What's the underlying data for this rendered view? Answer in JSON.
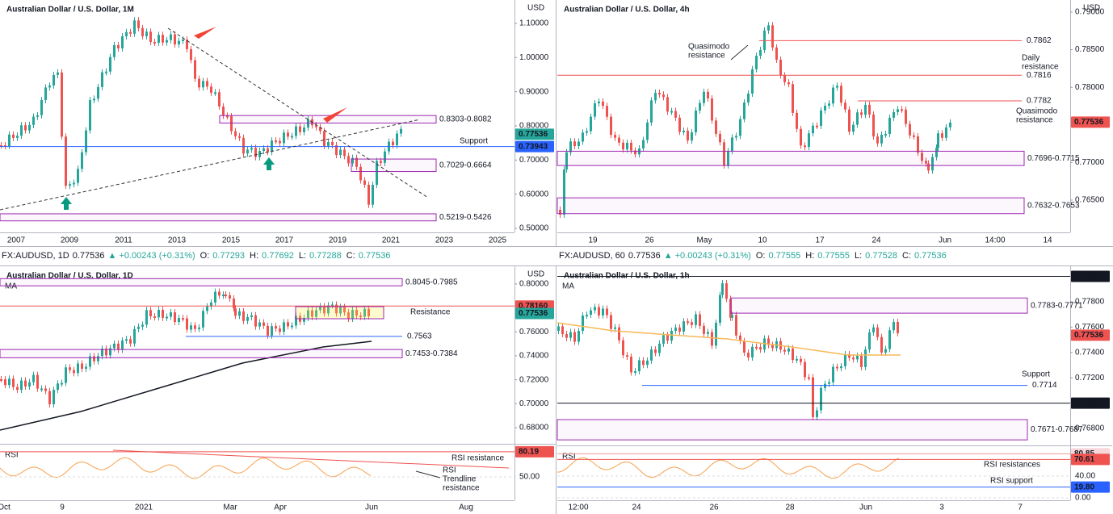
{
  "panels": [
    {
      "title": "Australian Dollar / U.S. Dollar, 1M",
      "currency": "USD",
      "ylim": [
        0.448,
        1.1685
      ],
      "yticks": [
        {
          "value": 1.1,
          "label": "1.10000"
        },
        {
          "value": 1.0,
          "label": "1.00000"
        },
        {
          "value": 0.9,
          "label": "0.90000"
        },
        {
          "value": 0.8,
          "label": "0.80000"
        },
        {
          "value": 0.7,
          "label": "0.70000"
        },
        {
          "value": 0.6,
          "label": "0.60000"
        },
        {
          "value": 0.5,
          "label": "0.50000"
        }
      ],
      "price_tags": [
        {
          "value": 0.77536,
          "label": "0.77536",
          "color": "#26a69a"
        },
        {
          "value": 0.73943,
          "label": "0.73943",
          "color": "#2962ff"
        }
      ],
      "levels": [
        {
          "label": "0.8303-0.8082",
          "low": 0.8082,
          "high": 0.8303,
          "color": "#9c27b0"
        },
        {
          "label": "0.7029-0.6664",
          "low": 0.6664,
          "high": 0.7029,
          "color": "#9c27b0"
        },
        {
          "label": "0.5219-0.5426",
          "low": 0.5219,
          "high": 0.5426,
          "color": "#9c27b0"
        }
      ],
      "annotations": [
        {
          "lines": [
            "Support"
          ]
        }
      ],
      "xticks": [
        "2007",
        "2009",
        "2011",
        "2013",
        "2015",
        "2017",
        "2019",
        "2021",
        "2023",
        "2025"
      ]
    },
    {
      "title": "Australian Dollar / U.S. Dollar, 4h",
      "currency": "USD",
      "ylim": [
        0.75888,
        0.79161
      ],
      "yticks": [
        {
          "value": 0.79,
          "label": "0.79000"
        },
        {
          "value": 0.785,
          "label": "0.78500"
        },
        {
          "value": 0.78,
          "label": "0.78000"
        },
        {
          "value": 0.77,
          "label": "0.77000"
        },
        {
          "value": 0.765,
          "label": "0.76500"
        }
      ],
      "price_tags": [
        {
          "value": 0.77536,
          "label": "0.77536",
          "color": "#ef5350"
        }
      ],
      "levels": [
        {
          "value": 0.7862,
          "color": "#ef5350"
        },
        {
          "value": 0.7816,
          "color": "#ef5350"
        },
        {
          "value": 0.7782,
          "color": "#ef5350"
        },
        {
          "label": "0.7696-0.7715",
          "low": 0.7696,
          "high": 0.7715,
          "color": "#9c27b0"
        },
        {
          "label": "0.7632-0.7653",
          "low": 0.7632,
          "high": 0.7653,
          "color": "#9c27b0"
        }
      ],
      "annotations": [
        {
          "lines": [
            "Quasimodo",
            "resistance"
          ]
        },
        {
          "lines": [
            "Daily",
            "resistance"
          ]
        },
        {
          "lines": [
            "Quasimodo",
            "resistance"
          ]
        }
      ],
      "xticks": [
        "19",
        "26",
        "May",
        "10",
        "17",
        "24",
        "Jun",
        "14:00",
        "14"
      ]
    },
    {
      "title": "Australian Dollar / U.S. Dollar, 1D",
      "indicator": "MA",
      "currency": "USD",
      "ylim": [
        0.66651,
        0.81483
      ],
      "yticks": [
        {
          "value": 0.8,
          "label": "0.80000"
        },
        {
          "value": 0.76,
          "label": "0.76000"
        },
        {
          "value": 0.74,
          "label": "0.74000"
        },
        {
          "value": 0.72,
          "label": "0.72000"
        },
        {
          "value": 0.7,
          "label": "0.70000"
        },
        {
          "value": 0.68,
          "label": "0.68000"
        }
      ],
      "price_tags": [
        {
          "value": 0.7816,
          "label": "0.78160",
          "color": "#ef5350"
        },
        {
          "value": 0.77536,
          "label": "0.77536",
          "color": "#26a69a"
        }
      ],
      "levels": [
        {
          "label": "0.8045-0.7985",
          "low": 0.7985,
          "high": 0.8045,
          "color": "#9c27b0"
        },
        {
          "value": 0.7563,
          "color": "#2962ff"
        },
        {
          "label": "0.7453-0.7384",
          "low": 0.7384,
          "high": 0.7453,
          "color": "#9c27b0"
        }
      ],
      "annotations": [
        {
          "lines": [
            "Resistance"
          ]
        }
      ],
      "rsi": {
        "label": "RSI",
        "ylim": [
          21.8,
          89.8
        ],
        "ticks": [
          {
            "value": 50,
            "label": "50.00"
          }
        ],
        "tags": [
          {
            "value": 80.19,
            "label": "80.19",
            "color": "#ef5350"
          }
        ],
        "annotations": [
          {
            "lines": [
              "RSI resistance"
            ]
          },
          {
            "lines": [
              "RSI",
              "Trendline",
              "resistance"
            ]
          }
        ]
      },
      "xticks": [
        "Oct",
        "9",
        "2021",
        "Mar",
        "Apr",
        "Jun",
        "Aug"
      ]
    },
    {
      "title": "Australian Dollar / U.S. Dollar, 1h",
      "indicator": "MA",
      "currency": "USD",
      "ylim": [
        0.76679,
        0.7808
      ],
      "yticks": [
        {
          "value": 0.778,
          "label": "0.77800"
        },
        {
          "value": 0.776,
          "label": "0.77600"
        },
        {
          "value": 0.774,
          "label": "0.77400"
        },
        {
          "value": 0.772,
          "label": "0.77200"
        },
        {
          "value": 0.768,
          "label": "0.76800"
        }
      ],
      "price_tags": [
        {
          "value": 0.78,
          "label": "0.78000",
          "color": "#131722"
        },
        {
          "value": 0.77536,
          "label": "0.77536",
          "color": "#ef5350"
        },
        {
          "value": 0.77,
          "label": "0.77000",
          "color": "#131722"
        }
      ],
      "levels": [
        {
          "label": "0.7783-0.7771",
          "low": 0.7771,
          "high": 0.7783,
          "color": "#9c27b0"
        },
        {
          "value": 0.7714,
          "color": "#2962ff"
        },
        {
          "label": "0.7671-0.7687",
          "low": 0.7671,
          "high": 0.7687,
          "color": "#9c27b0"
        }
      ],
      "annotations": [
        {
          "lines": [
            "Support"
          ]
        }
      ],
      "rsi": {
        "label": "RSI",
        "ylim": [
          -4.4,
          96.3
        ],
        "ticks": [
          {
            "value": 40,
            "label": "40.00"
          },
          {
            "value": 0,
            "label": "0.00"
          }
        ],
        "tags": [
          {
            "value": 80.85,
            "label": "80.85",
            "color": "#f8d7da"
          },
          {
            "value": 70.61,
            "label": "70.61",
            "color": "#ef5350"
          },
          {
            "value": 19.8,
            "label": "19.80",
            "color": "#2962ff"
          }
        ],
        "annotations": [
          {
            "lines": [
              "RSI resistances"
            ]
          },
          {
            "lines": [
              "RSI support"
            ]
          }
        ]
      },
      "xticks": [
        "12:00",
        "24",
        "26",
        "28",
        "Jun",
        "3",
        "7"
      ]
    }
  ],
  "info_bars": [
    {
      "symbol": "FX:AUDUSD, 1D",
      "last": "0.77536",
      "change": "▲ +0.00243 (+0.31%)",
      "ohlc": [
        {
          "key": "O:",
          "value": "0.77293"
        },
        {
          "key": "H:",
          "value": "0.77692"
        },
        {
          "key": "L:",
          "value": "0.77288"
        },
        {
          "key": "C:",
          "value": "0.77536"
        }
      ]
    },
    {
      "symbol": "FX:AUDUSD, 60",
      "last": "0.77536",
      "change": "▲ +0.00243 (+0.31%)",
      "ohlc": [
        {
          "key": "O:",
          "value": "0.77555"
        },
        {
          "key": "H:",
          "value": "0.77555"
        },
        {
          "key": "L:",
          "value": "0.77528"
        },
        {
          "key": "C:",
          "value": "0.77536"
        }
      ]
    }
  ]
}
